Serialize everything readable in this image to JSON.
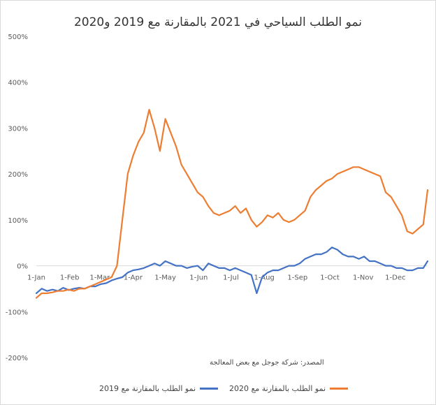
{
  "colors": {
    "series_2019": "#4472c4",
    "series_2020": "#ed7d31",
    "axis_text": "#595959",
    "gridline": "#d9d9d9"
  },
  "source_note": "المصدر: شركة جوجل مع بعض المعالجة",
  "chart_data": {
    "type": "line",
    "title": "نمو الطلب السياحي في 2021 بالمقارنة مع 2019 و2020",
    "xlabel": "",
    "ylabel": "",
    "x_ticks": [
      "1-Jan",
      "1-Feb",
      "1-Mar",
      "1-Apr",
      "1-May",
      "1-Jun",
      "1-Jul",
      "1-Aug",
      "1-Sep",
      "1-Oct",
      "1-Nov",
      "1-Dec"
    ],
    "x_tick_days": [
      0,
      31,
      59,
      90,
      120,
      151,
      181,
      212,
      243,
      273,
      304,
      334
    ],
    "y_ticks": [
      "-200%",
      "-100%",
      "0%",
      "100%",
      "200%",
      "300%",
      "400%",
      "500%"
    ],
    "ylim": [
      -200,
      500
    ],
    "xlim": [
      0,
      364
    ],
    "grid": false,
    "legend_position": "bottom",
    "series": [
      {
        "name": "نمو الطلب بالمقارنة مع 2019",
        "color": "#4472c4",
        "x": [
          0,
          5,
          10,
          15,
          20,
          25,
          30,
          35,
          40,
          45,
          50,
          55,
          60,
          65,
          70,
          75,
          80,
          85,
          90,
          95,
          100,
          105,
          110,
          115,
          120,
          125,
          130,
          135,
          140,
          145,
          150,
          155,
          160,
          165,
          170,
          175,
          180,
          185,
          190,
          195,
          200,
          205,
          210,
          215,
          220,
          225,
          230,
          235,
          240,
          245,
          250,
          255,
          260,
          265,
          270,
          275,
          280,
          285,
          290,
          295,
          300,
          305,
          310,
          315,
          320,
          325,
          330,
          335,
          340,
          345,
          350,
          355,
          360,
          364
        ],
        "values": [
          -60,
          -50,
          -55,
          -52,
          -55,
          -48,
          -53,
          -50,
          -48,
          -50,
          -45,
          -45,
          -40,
          -38,
          -32,
          -28,
          -25,
          -15,
          -10,
          -8,
          -5,
          0,
          5,
          0,
          10,
          5,
          0,
          0,
          -5,
          -2,
          0,
          -10,
          5,
          0,
          -5,
          -5,
          -10,
          -5,
          -10,
          -15,
          -20,
          -60,
          -25,
          -15,
          -10,
          -10,
          -5,
          0,
          0,
          5,
          15,
          20,
          25,
          25,
          30,
          40,
          35,
          25,
          20,
          20,
          15,
          20,
          10,
          10,
          5,
          0,
          0,
          -5,
          -5,
          -10,
          -10,
          -5,
          -5,
          10
        ]
      },
      {
        "name": "نمو الطلب بالمقارنة مع 2020",
        "color": "#ed7d31",
        "x": [
          0,
          5,
          10,
          15,
          20,
          25,
          30,
          35,
          40,
          45,
          50,
          55,
          60,
          65,
          70,
          75,
          80,
          85,
          90,
          95,
          100,
          105,
          110,
          115,
          120,
          125,
          130,
          135,
          140,
          145,
          150,
          155,
          160,
          165,
          170,
          175,
          180,
          185,
          190,
          195,
          200,
          205,
          210,
          215,
          220,
          225,
          230,
          235,
          240,
          245,
          250,
          255,
          260,
          265,
          270,
          275,
          280,
          285,
          290,
          295,
          300,
          305,
          310,
          315,
          320,
          325,
          330,
          335,
          340,
          345,
          350,
          355,
          360,
          364
        ],
        "values": [
          -70,
          -60,
          -60,
          -58,
          -55,
          -55,
          -52,
          -55,
          -50,
          -50,
          -45,
          -40,
          -35,
          -30,
          -25,
          0,
          100,
          200,
          240,
          270,
          290,
          340,
          300,
          250,
          320,
          290,
          260,
          220,
          200,
          180,
          160,
          150,
          130,
          115,
          110,
          115,
          120,
          130,
          115,
          125,
          100,
          85,
          95,
          110,
          105,
          115,
          100,
          95,
          100,
          110,
          120,
          150,
          165,
          175,
          185,
          190,
          200,
          205,
          210,
          215,
          215,
          210,
          205,
          200,
          195,
          160,
          150,
          130,
          110,
          75,
          70,
          80,
          90,
          165
        ]
      }
    ]
  }
}
